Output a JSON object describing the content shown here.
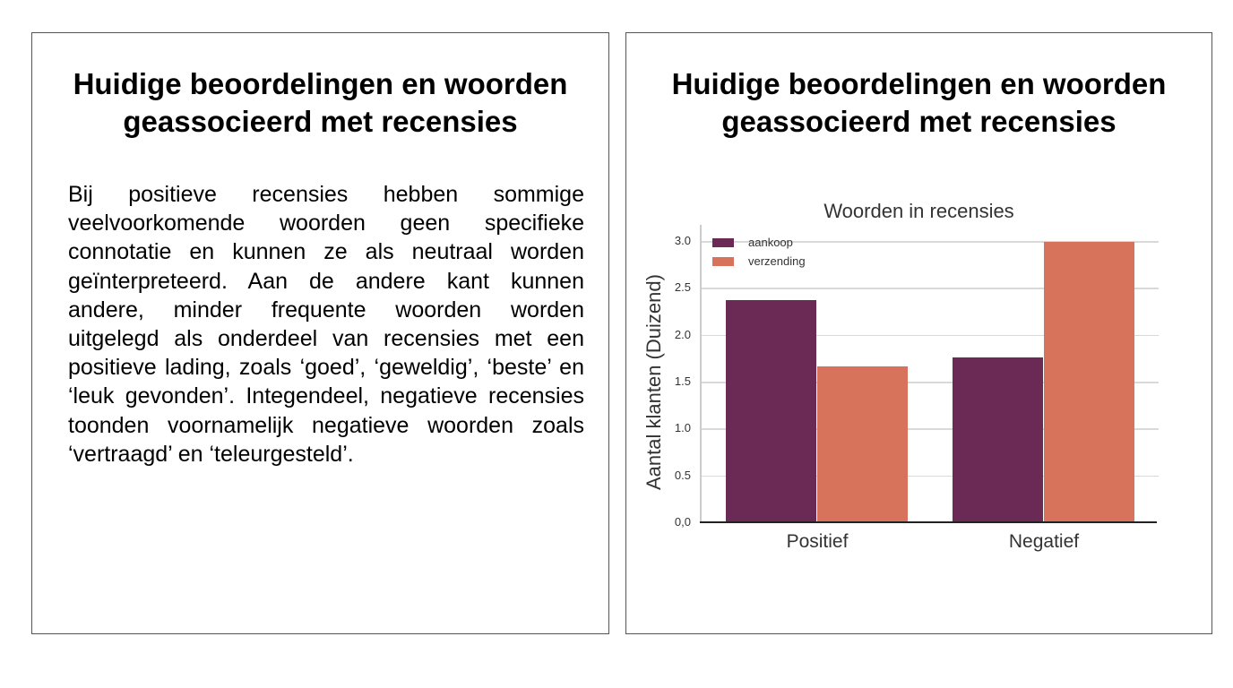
{
  "left_panel": {
    "title_line1": "Huidige beoordelingen en woorden",
    "title_line2": "geassocieerd met recensies",
    "body": "Bij positieve recensies hebben sommige veelvoorkomende woorden geen specifieke connotatie en kunnen ze als neutraal worden geïnterpreteerd. Aan de andere kant kunnen andere, minder frequente woorden worden uitgelegd als onderdeel van recensies met een positieve lading, zoals ‘goed’, ‘geweldig’, ‘beste’ en ‘leuk gevonden’. Integendeel, negatieve recensies toonden voornamelijk negatieve woorden zoals ‘vertraagd’ en ‘teleurgesteld’."
  },
  "right_panel": {
    "title_line1": "Huidige beoordelingen en woorden",
    "title_line2": "geassocieerd met recensies"
  },
  "chart_data": {
    "type": "bar",
    "title": "Woorden in recensies",
    "xlabel": "",
    "ylabel": "Aantal klanten (Duizend)",
    "categories": [
      "Positief",
      "Negatief"
    ],
    "series": [
      {
        "name": "aankoop",
        "values": [
          2.37,
          1.76
        ],
        "color": "#6b2a55"
      },
      {
        "name": "verzending",
        "values": [
          1.66,
          2.99
        ],
        "color": "#d7735a"
      }
    ],
    "ylim": [
      0,
      3.0
    ],
    "yticks": [
      0.0,
      0.5,
      1.0,
      1.5,
      2.0,
      2.5,
      3.0
    ],
    "ytick_labels": [
      "0,0",
      "0.5",
      "1.0",
      "1.5",
      "2.0",
      "2.5",
      "3.0"
    ],
    "grid": true,
    "legend_position": "upper left"
  }
}
